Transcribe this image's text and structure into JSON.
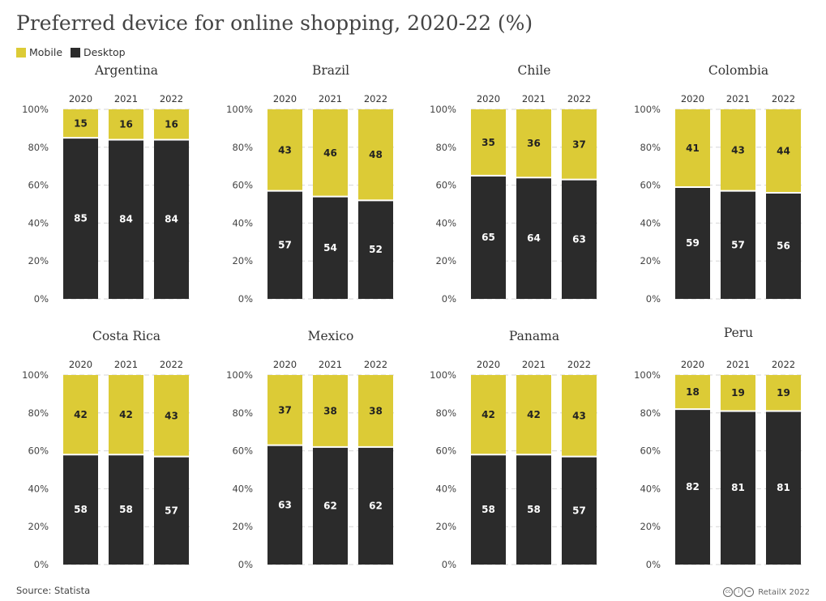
{
  "title": "Preferred device for online shopping, 2020-22 (%)",
  "legend": [
    {
      "label": "Mobile",
      "color": "#dccb36"
    },
    {
      "label": "Desktop",
      "color": "#2b2b2b"
    }
  ],
  "source": "Source: Statista",
  "credit": "RetailX 2022",
  "chart_data": [
    {
      "type": "bar",
      "stacked": true,
      "title": "Argentina",
      "categories": [
        "2020",
        "2021",
        "2022"
      ],
      "ylim": [
        0,
        100
      ],
      "yticks": [
        "0%",
        "20%",
        "40%",
        "60%",
        "80%",
        "100%"
      ],
      "series": [
        {
          "name": "Desktop",
          "values": [
            85,
            84,
            84
          ]
        },
        {
          "name": "Mobile",
          "values": [
            15,
            16,
            16
          ]
        }
      ]
    },
    {
      "type": "bar",
      "stacked": true,
      "title": "Brazil",
      "categories": [
        "2020",
        "2021",
        "2022"
      ],
      "ylim": [
        0,
        100
      ],
      "yticks": [
        "0%",
        "20%",
        "40%",
        "60%",
        "80%",
        "100%"
      ],
      "series": [
        {
          "name": "Desktop",
          "values": [
            57,
            54,
            52
          ]
        },
        {
          "name": "Mobile",
          "values": [
            43,
            46,
            48
          ]
        }
      ]
    },
    {
      "type": "bar",
      "stacked": true,
      "title": "Chile",
      "categories": [
        "2020",
        "2021",
        "2022"
      ],
      "ylim": [
        0,
        100
      ],
      "yticks": [
        "0%",
        "20%",
        "40%",
        "60%",
        "80%",
        "100%"
      ],
      "series": [
        {
          "name": "Desktop",
          "values": [
            65,
            64,
            63
          ]
        },
        {
          "name": "Mobile",
          "values": [
            35,
            36,
            37
          ]
        }
      ]
    },
    {
      "type": "bar",
      "stacked": true,
      "title": "Colombia",
      "categories": [
        "2020",
        "2021",
        "2022"
      ],
      "ylim": [
        0,
        100
      ],
      "yticks": [
        "0%",
        "20%",
        "40%",
        "60%",
        "80%",
        "100%"
      ],
      "series": [
        {
          "name": "Desktop",
          "values": [
            59,
            57,
            56
          ]
        },
        {
          "name": "Mobile",
          "values": [
            41,
            43,
            44
          ]
        }
      ]
    },
    {
      "type": "bar",
      "stacked": true,
      "title": "Costa Rica",
      "categories": [
        "2020",
        "2021",
        "2022"
      ],
      "ylim": [
        0,
        100
      ],
      "yticks": [
        "0%",
        "20%",
        "40%",
        "60%",
        "80%",
        "100%"
      ],
      "series": [
        {
          "name": "Desktop",
          "values": [
            58,
            58,
            57
          ]
        },
        {
          "name": "Mobile",
          "values": [
            42,
            42,
            43
          ]
        }
      ]
    },
    {
      "type": "bar",
      "stacked": true,
      "title": "Mexico",
      "categories": [
        "2020",
        "2021",
        "2022"
      ],
      "ylim": [
        0,
        100
      ],
      "yticks": [
        "0%",
        "20%",
        "40%",
        "60%",
        "80%",
        "100%"
      ],
      "series": [
        {
          "name": "Desktop",
          "values": [
            63,
            62,
            62
          ]
        },
        {
          "name": "Mobile",
          "values": [
            37,
            38,
            38
          ]
        }
      ]
    },
    {
      "type": "bar",
      "stacked": true,
      "title": "Panama",
      "categories": [
        "2020",
        "2021",
        "2022"
      ],
      "ylim": [
        0,
        100
      ],
      "yticks": [
        "0%",
        "20%",
        "40%",
        "60%",
        "80%",
        "100%"
      ],
      "series": [
        {
          "name": "Desktop",
          "values": [
            58,
            58,
            57
          ]
        },
        {
          "name": "Mobile",
          "values": [
            42,
            42,
            43
          ]
        }
      ]
    },
    {
      "type": "bar",
      "stacked": true,
      "title": "Peru",
      "categories": [
        "2020",
        "2021",
        "2022"
      ],
      "ylim": [
        0,
        100
      ],
      "yticks": [
        "0%",
        "20%",
        "40%",
        "60%",
        "80%",
        "100%"
      ],
      "series": [
        {
          "name": "Desktop",
          "values": [
            82,
            81,
            81
          ]
        },
        {
          "name": "Mobile",
          "values": [
            18,
            19,
            19
          ]
        }
      ]
    }
  ]
}
